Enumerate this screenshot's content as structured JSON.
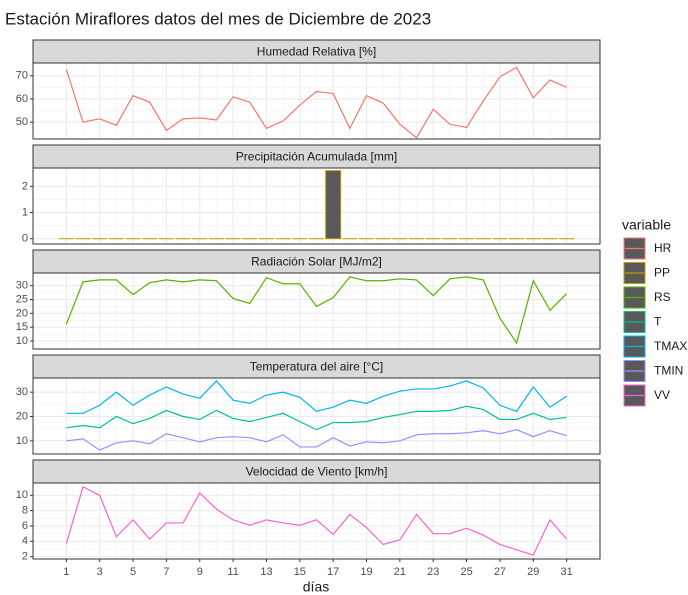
{
  "title": "Estación Miraflores datos del mes de Diciembre de 2023",
  "x_label": "días",
  "legend": {
    "title": "variable"
  },
  "chart_data": [
    {
      "type": "line",
      "title": "Humedad Relativa [%]",
      "x": [
        1,
        2,
        3,
        4,
        5,
        6,
        7,
        8,
        9,
        10,
        11,
        12,
        13,
        14,
        15,
        16,
        17,
        18,
        19,
        20,
        21,
        22,
        23,
        24,
        25,
        26,
        27,
        28,
        29,
        30,
        31
      ],
      "xlim": [
        -1,
        33
      ],
      "xticks": [
        1,
        3,
        5,
        7,
        9,
        11,
        13,
        15,
        17,
        19,
        21,
        23,
        25,
        27,
        29,
        31
      ],
      "ylim": [
        42.7,
        75.5
      ],
      "yticks": [
        50,
        60,
        70
      ],
      "series": [
        {
          "name": "HR",
          "color": "#F8766D",
          "values": [
            72.7,
            50,
            51.4,
            48.6,
            61.4,
            58.6,
            46.4,
            51.4,
            51.8,
            50.9,
            60.9,
            58.6,
            47.3,
            50.5,
            57.3,
            63.2,
            62.3,
            47.3,
            61.4,
            58.2,
            49.1,
            43.2,
            55.5,
            49.1,
            47.7,
            59.1,
            69.5,
            73.6,
            60.5,
            68.2,
            65
          ]
        }
      ]
    },
    {
      "type": "bar",
      "title": "Precipitación Acumulada [mm]",
      "x": [
        1,
        2,
        3,
        4,
        5,
        6,
        7,
        8,
        9,
        10,
        11,
        12,
        13,
        14,
        15,
        16,
        17,
        18,
        19,
        20,
        21,
        22,
        23,
        24,
        25,
        26,
        27,
        28,
        29,
        30,
        31
      ],
      "xlim": [
        -1,
        33
      ],
      "xticks": [
        1,
        3,
        5,
        7,
        9,
        11,
        13,
        15,
        17,
        19,
        21,
        23,
        25,
        27,
        29,
        31
      ],
      "ylim": [
        -0.2,
        2.7
      ],
      "yticks": [
        0,
        1,
        2
      ],
      "series": [
        {
          "name": "PP",
          "color": "#C49A00",
          "values": [
            0,
            0,
            0,
            0,
            0,
            0,
            0,
            0,
            0,
            0,
            0,
            0,
            0,
            0,
            0,
            0,
            2.6,
            0,
            0,
            0,
            0,
            0,
            0,
            0,
            0,
            0,
            0,
            0,
            0,
            0,
            0
          ]
        }
      ]
    },
    {
      "type": "line",
      "title": "Radiación Solar [MJ/m2]",
      "x": [
        1,
        2,
        3,
        4,
        5,
        6,
        7,
        8,
        9,
        10,
        11,
        12,
        13,
        14,
        15,
        16,
        17,
        18,
        19,
        20,
        21,
        22,
        23,
        24,
        25,
        26,
        27,
        28,
        29,
        30,
        31
      ],
      "xlim": [
        -1,
        33
      ],
      "xticks": [
        1,
        3,
        5,
        7,
        9,
        11,
        13,
        15,
        17,
        19,
        21,
        23,
        25,
        27,
        29,
        31
      ],
      "ylim": [
        7.1,
        34.6
      ],
      "yticks": [
        10,
        15,
        20,
        25,
        30
      ],
      "series": [
        {
          "name": "RS",
          "color": "#53B400",
          "values": [
            16.1,
            31.4,
            32.1,
            32.1,
            26.8,
            31.1,
            32.1,
            31.4,
            32.1,
            31.8,
            25.4,
            23.6,
            32.9,
            30.7,
            30.7,
            22.5,
            25.7,
            33.2,
            31.8,
            31.8,
            32.5,
            32.1,
            26.4,
            32.5,
            33.2,
            32.1,
            18.2,
            9.3,
            31.8,
            21.1,
            27.1
          ]
        }
      ]
    },
    {
      "type": "line",
      "title": "Temperatura del aire [°C]",
      "x": [
        1,
        2,
        3,
        4,
        5,
        6,
        7,
        8,
        9,
        10,
        11,
        12,
        13,
        14,
        15,
        16,
        17,
        18,
        19,
        20,
        21,
        22,
        23,
        24,
        25,
        26,
        27,
        28,
        29,
        30,
        31
      ],
      "xlim": [
        -1,
        33
      ],
      "xticks": [
        1,
        3,
        5,
        7,
        9,
        11,
        13,
        15,
        17,
        19,
        21,
        23,
        25,
        27,
        29,
        31
      ],
      "ylim": [
        4.6,
        35.8
      ],
      "yticks": [
        10,
        20,
        30
      ],
      "series": [
        {
          "name": "T",
          "color": "#00C094",
          "values": [
            15.4,
            16.3,
            15.4,
            20,
            17.1,
            19.2,
            22.5,
            20,
            18.8,
            22.5,
            19.2,
            17.9,
            19.6,
            21.3,
            17.9,
            14.6,
            17.5,
            17.5,
            17.9,
            19.6,
            20.8,
            22.1,
            22.1,
            22.5,
            24.2,
            22.9,
            18.8,
            18.8,
            21.3,
            18.8,
            19.6
          ]
        },
        {
          "name": "TMAX",
          "color": "#00B6EB",
          "values": [
            21.3,
            21.3,
            24.6,
            30,
            24.6,
            28.8,
            32.1,
            29.2,
            27.5,
            34.6,
            26.7,
            25.4,
            28.8,
            30,
            27.9,
            22.1,
            23.8,
            26.7,
            25.4,
            28.3,
            30.4,
            31.3,
            31.3,
            32.5,
            34.6,
            31.7,
            24.6,
            22.1,
            32.1,
            23.8,
            28.3
          ]
        },
        {
          "name": "TMIN",
          "color": "#A58AFF",
          "values": [
            10,
            10.8,
            6.2,
            9.2,
            10,
            8.8,
            12.9,
            11.3,
            9.6,
            11.3,
            11.7,
            11.3,
            9.6,
            12.5,
            7.5,
            7.5,
            11.3,
            7.9,
            9.6,
            9.2,
            10,
            12.5,
            12.9,
            12.9,
            13.3,
            14.2,
            12.9,
            14.6,
            11.7,
            14.2,
            12.1
          ]
        }
      ]
    },
    {
      "type": "line",
      "title": "Velocidad de Viento [km/h]",
      "x": [
        1,
        2,
        3,
        4,
        5,
        6,
        7,
        8,
        9,
        10,
        11,
        12,
        13,
        14,
        15,
        16,
        17,
        18,
        19,
        20,
        21,
        22,
        23,
        24,
        25,
        26,
        27,
        28,
        29,
        30,
        31
      ],
      "xlim": [
        -1,
        33
      ],
      "xticks": [
        1,
        3,
        5,
        7,
        9,
        11,
        13,
        15,
        17,
        19,
        21,
        23,
        25,
        27,
        29,
        31
      ],
      "ylim": [
        1.7,
        11.6
      ],
      "yticks": [
        2,
        4,
        6,
        8,
        10
      ],
      "series": [
        {
          "name": "VV",
          "color": "#FB61D7",
          "values": [
            3.7,
            11.1,
            10,
            4.6,
            6.8,
            4.3,
            6.4,
            6.4,
            10.3,
            8.2,
            6.8,
            6.1,
            6.8,
            6.4,
            6.1,
            6.8,
            4.9,
            7.5,
            5.8,
            3.6,
            4.2,
            7.5,
            5,
            5,
            5.7,
            4.8,
            3.6,
            2.9,
            2.2,
            6.8,
            4.3
          ]
        }
      ]
    }
  ]
}
